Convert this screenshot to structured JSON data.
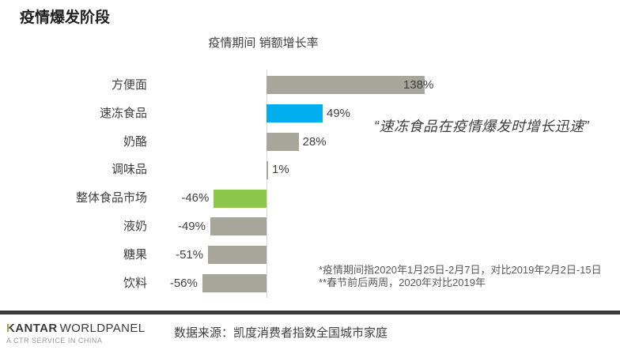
{
  "page": {
    "title": "疫情爆发阶段"
  },
  "annotation": "“速冻食品在疫情爆发时增长迅速”",
  "footnotes": [
    "*疫情期间指2020年1月25日-2月7日，对比2019年2月2日-15日",
    "**春节前后两周，2020年对比2019年"
  ],
  "footer": {
    "brand_k": "K",
    "brand_rest": "ANTAR",
    "brand_light": "WORLDPANEL",
    "tagline": "A CTR SERVICE IN CHINA",
    "source": "数据来源：凯度消费者指数全国城市家庭"
  },
  "colors": {
    "bar_gray": "#A8A69B",
    "bar_blue": "#00AEEF",
    "bar_green": "#8CC749",
    "axis": "#D9D9D9",
    "footer_line": "#3B3B3B",
    "logo_gold": "#B3995D",
    "text_dark": "#404040"
  },
  "chart_data": {
    "type": "bar",
    "orientation": "horizontal",
    "title": "疫情期间 销额增长率",
    "categories": [
      "方便面",
      "速冻食品",
      "奶酪",
      "调味品",
      "整体食品市场",
      "液奶",
      "糖果",
      "饮料"
    ],
    "values": [
      138,
      49,
      28,
      1,
      -46,
      -49,
      -51,
      -56
    ],
    "value_labels": [
      "138%",
      "49%",
      "28%",
      "1%",
      "-46%",
      "-49%",
      "-51%",
      "-56%"
    ],
    "value_suffix": "%",
    "bar_colors": [
      "#A8A69B",
      "#00AEEF",
      "#A8A69B",
      "#A8A69B",
      "#8CC749",
      "#A8A69B",
      "#A8A69B",
      "#A8A69B"
    ],
    "xlim": [
      -80,
      160
    ],
    "grid": false,
    "legend": false,
    "value_label_position": "outside-end"
  }
}
